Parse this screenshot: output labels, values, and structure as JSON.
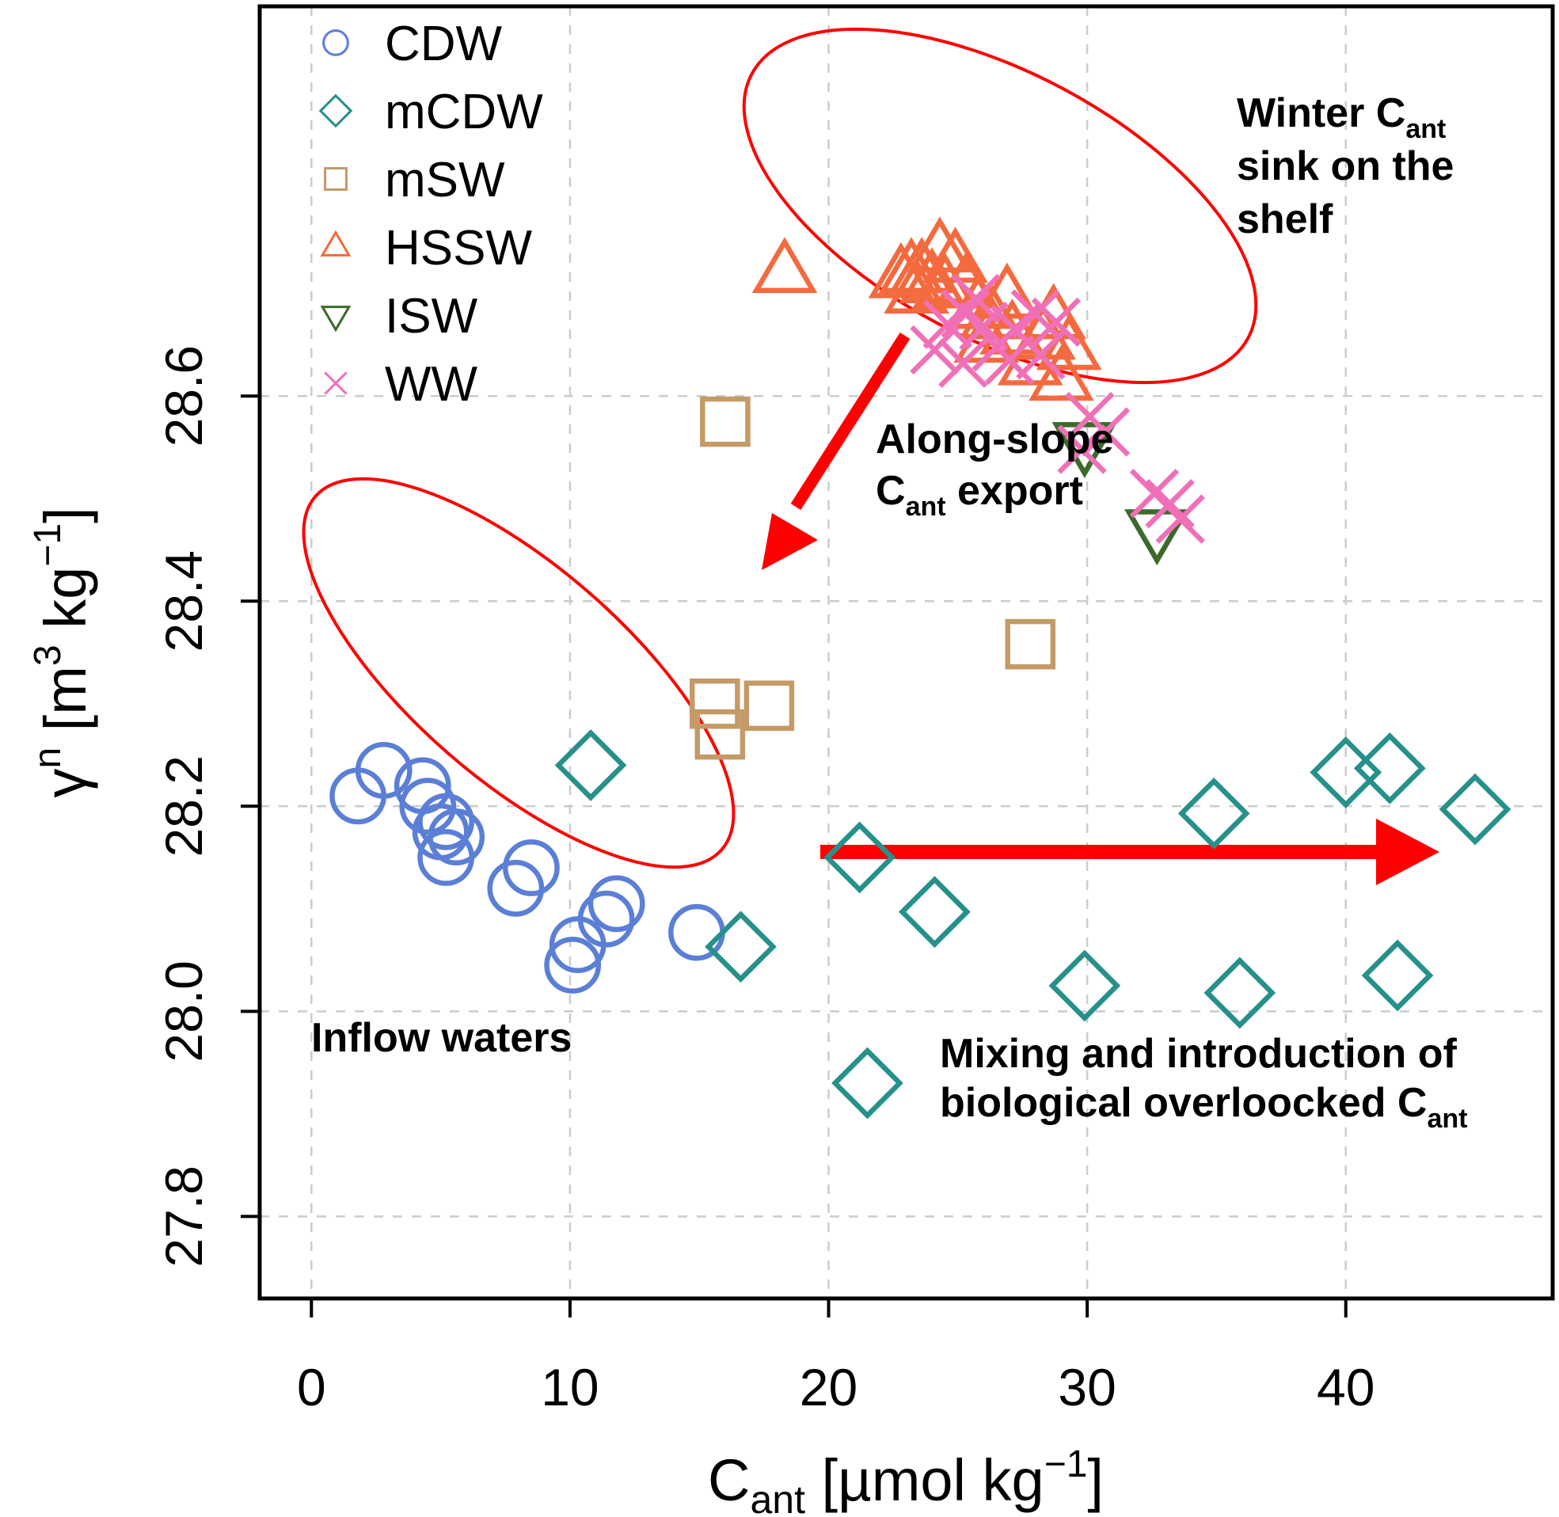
{
  "chart_data": {
    "type": "scatter",
    "xlabel": {
      "main": "C",
      "sub": "ant",
      "rest": " [µmol kg",
      "sup": "−1",
      "close": "]"
    },
    "ylabel": {
      "main": "γ",
      "sup1": "n",
      "rest1": " [m",
      "sup2": "3",
      "rest2": " kg",
      "sup3": "−1",
      "close": "]"
    },
    "xlim": [
      -2,
      48
    ],
    "ylim": [
      27.72,
      28.98
    ],
    "x_ticks": [
      0,
      10,
      20,
      30,
      40
    ],
    "y_ticks": [
      27.8,
      28.0,
      28.2,
      28.4,
      28.6
    ],
    "x_tick_labels": [
      "0",
      "10",
      "20",
      "30",
      "40"
    ],
    "y_tick_labels": [
      "27.8",
      "28.0",
      "28.2",
      "28.4",
      "28.6"
    ],
    "grid": true,
    "legend_position": "top-left",
    "series": [
      {
        "name": "CDW",
        "marker": "circle",
        "color": "#5B7FD6",
        "points": [
          [
            1.8,
            28.21
          ],
          [
            2.8,
            28.235
          ],
          [
            4.3,
            28.22
          ],
          [
            4.5,
            28.2
          ],
          [
            5.2,
            28.185
          ],
          [
            5.0,
            28.175
          ],
          [
            5.6,
            28.17
          ],
          [
            5.2,
            28.15
          ],
          [
            8.5,
            28.14
          ],
          [
            7.9,
            28.12
          ],
          [
            11.8,
            28.105
          ],
          [
            11.4,
            28.09
          ],
          [
            14.9,
            28.077
          ],
          [
            10.3,
            28.065
          ],
          [
            10.1,
            28.045
          ]
        ]
      },
      {
        "name": "mCDW",
        "marker": "diamond",
        "color": "#26908A",
        "points": [
          [
            10.8,
            28.24
          ],
          [
            21.2,
            28.15
          ],
          [
            24.1,
            28.097
          ],
          [
            16.6,
            28.063
          ],
          [
            29.9,
            28.025
          ],
          [
            35.9,
            28.018
          ],
          [
            42.0,
            28.035
          ],
          [
            21.5,
            27.93
          ],
          [
            34.9,
            28.193
          ],
          [
            40.0,
            28.233
          ],
          [
            41.7,
            28.237
          ],
          [
            45.0,
            28.197
          ]
        ]
      },
      {
        "name": "mSW",
        "marker": "square",
        "color": "#C49A67",
        "points": [
          [
            16.0,
            28.575
          ],
          [
            27.8,
            28.358
          ],
          [
            15.6,
            28.3
          ],
          [
            17.7,
            28.298
          ],
          [
            15.8,
            28.27
          ]
        ]
      },
      {
        "name": "HSSW",
        "marker": "triangle",
        "color": "#F46A3F",
        "points": [
          [
            18.3,
            28.72
          ],
          [
            22.8,
            28.715
          ],
          [
            23.2,
            28.72
          ],
          [
            23.6,
            28.72
          ],
          [
            24.0,
            28.71
          ],
          [
            24.3,
            28.74
          ],
          [
            24.9,
            28.73
          ],
          [
            24.5,
            28.705
          ],
          [
            23.4,
            28.7
          ],
          [
            25.3,
            28.705
          ],
          [
            26.3,
            28.675
          ],
          [
            26.1,
            28.652
          ],
          [
            27.1,
            28.66
          ],
          [
            27.8,
            28.63
          ],
          [
            28.3,
            28.655
          ],
          [
            28.7,
            28.675
          ],
          [
            29.3,
            28.645
          ],
          [
            26.9,
            28.695
          ],
          [
            29.0,
            28.615
          ],
          [
            25.8,
            28.685
          ]
        ]
      },
      {
        "name": "ISW",
        "marker": "inverted-triangle",
        "color": "#3A6B2A",
        "points": [
          [
            29.9,
            28.555
          ],
          [
            32.7,
            28.47
          ]
        ]
      },
      {
        "name": "WW",
        "marker": "cross",
        "color": "#F070B8",
        "points": [
          [
            24.6,
            28.67
          ],
          [
            25.3,
            28.68
          ],
          [
            26.0,
            28.668
          ],
          [
            24.1,
            28.645
          ],
          [
            25.2,
            28.632
          ],
          [
            26.5,
            28.648
          ],
          [
            27.2,
            28.665
          ],
          [
            28.0,
            28.68
          ],
          [
            28.8,
            28.672
          ],
          [
            27.0,
            28.635
          ],
          [
            28.2,
            28.64
          ],
          [
            25.7,
            28.695
          ],
          [
            30.1,
            28.58
          ],
          [
            30.7,
            28.565
          ],
          [
            29.8,
            28.548
          ],
          [
            32.6,
            28.505
          ],
          [
            33.2,
            28.495
          ],
          [
            33.6,
            28.48
          ]
        ]
      }
    ],
    "annotations": [
      {
        "lines": [
          [
            {
              "t": "Winter C"
            },
            {
              "t": "ant",
              "sub": true
            }
          ],
          [
            {
              "t": "sink on the"
            }
          ],
          [
            {
              "t": "shelf"
            }
          ]
        ]
      },
      {
        "lines": [
          [
            {
              "t": "Along-slope"
            }
          ],
          [
            {
              "t": "C"
            },
            {
              "t": "ant",
              "sub": true
            },
            {
              "t": " export"
            }
          ]
        ]
      },
      {
        "lines": [
          [
            {
              "t": "Inflow waters"
            }
          ]
        ]
      },
      {
        "lines": [
          [
            {
              "t": "Mixing and introduction of"
            }
          ],
          [
            {
              "t": "biological overloocked C"
            },
            {
              "t": "ant",
              "sub": true
            }
          ]
        ]
      }
    ],
    "annotation_color": "#FF0000"
  }
}
